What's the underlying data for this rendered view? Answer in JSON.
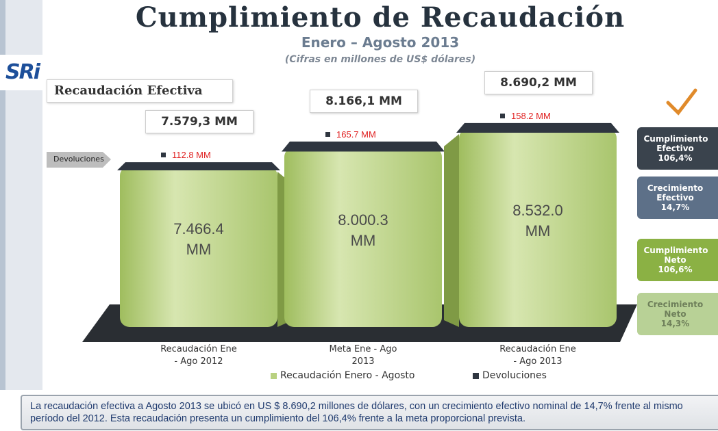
{
  "header": {
    "title": "Cumplimiento de Recaudación",
    "subtitle": "Enero – Agosto 2013",
    "note": "(Cifras en millones de US$ dólares)",
    "logo": "SRi"
  },
  "section_label": "Recaudación Efectiva",
  "chart_data": {
    "type": "bar",
    "categories": [
      "Recaudación Ene - Ago 2012",
      "Meta Ene - Ago 2013",
      "Recaudación Ene - Ago 2013"
    ],
    "series": [
      {
        "name": "Recaudación Enero - Agosto",
        "color": "#b9d181",
        "values": [
          7466.4,
          8000.3,
          8532.0
        ],
        "value_labels": [
          "7.466.4 MM",
          "8.000.3 MM",
          "8.532.0 MM"
        ]
      },
      {
        "name": "Devoluciones",
        "color": "#2f3640",
        "values": [
          112.8,
          165.7,
          158.2
        ],
        "value_labels": [
          "112.8 MM",
          "165.7 MM",
          "158.2 MM"
        ]
      }
    ],
    "totals": [
      "7.579,3 MM",
      "8.166,1 MM",
      "8.690,2 MM"
    ],
    "callout": "Devoluciones"
  },
  "indicators": [
    {
      "label": "Cumplimiento Efectivo",
      "value": "106,4%"
    },
    {
      "label": "Crecimiento Efectivo",
      "value": "14,7%"
    },
    {
      "label": "Cumplimiento Neto",
      "value": "106,6%"
    },
    {
      "label": "Crecimiento Neto",
      "value": "14,3%"
    }
  ],
  "summary": "La recaudación efectiva a Agosto 2013 se ubicó en US $ 8.690,2 millones de dólares, con un crecimiento efectivo nominal de 14,7% frente al mismo período del 2012. Esta recaudación presenta un cumplimiento del 106,4% frente a la meta proporcional prevista."
}
